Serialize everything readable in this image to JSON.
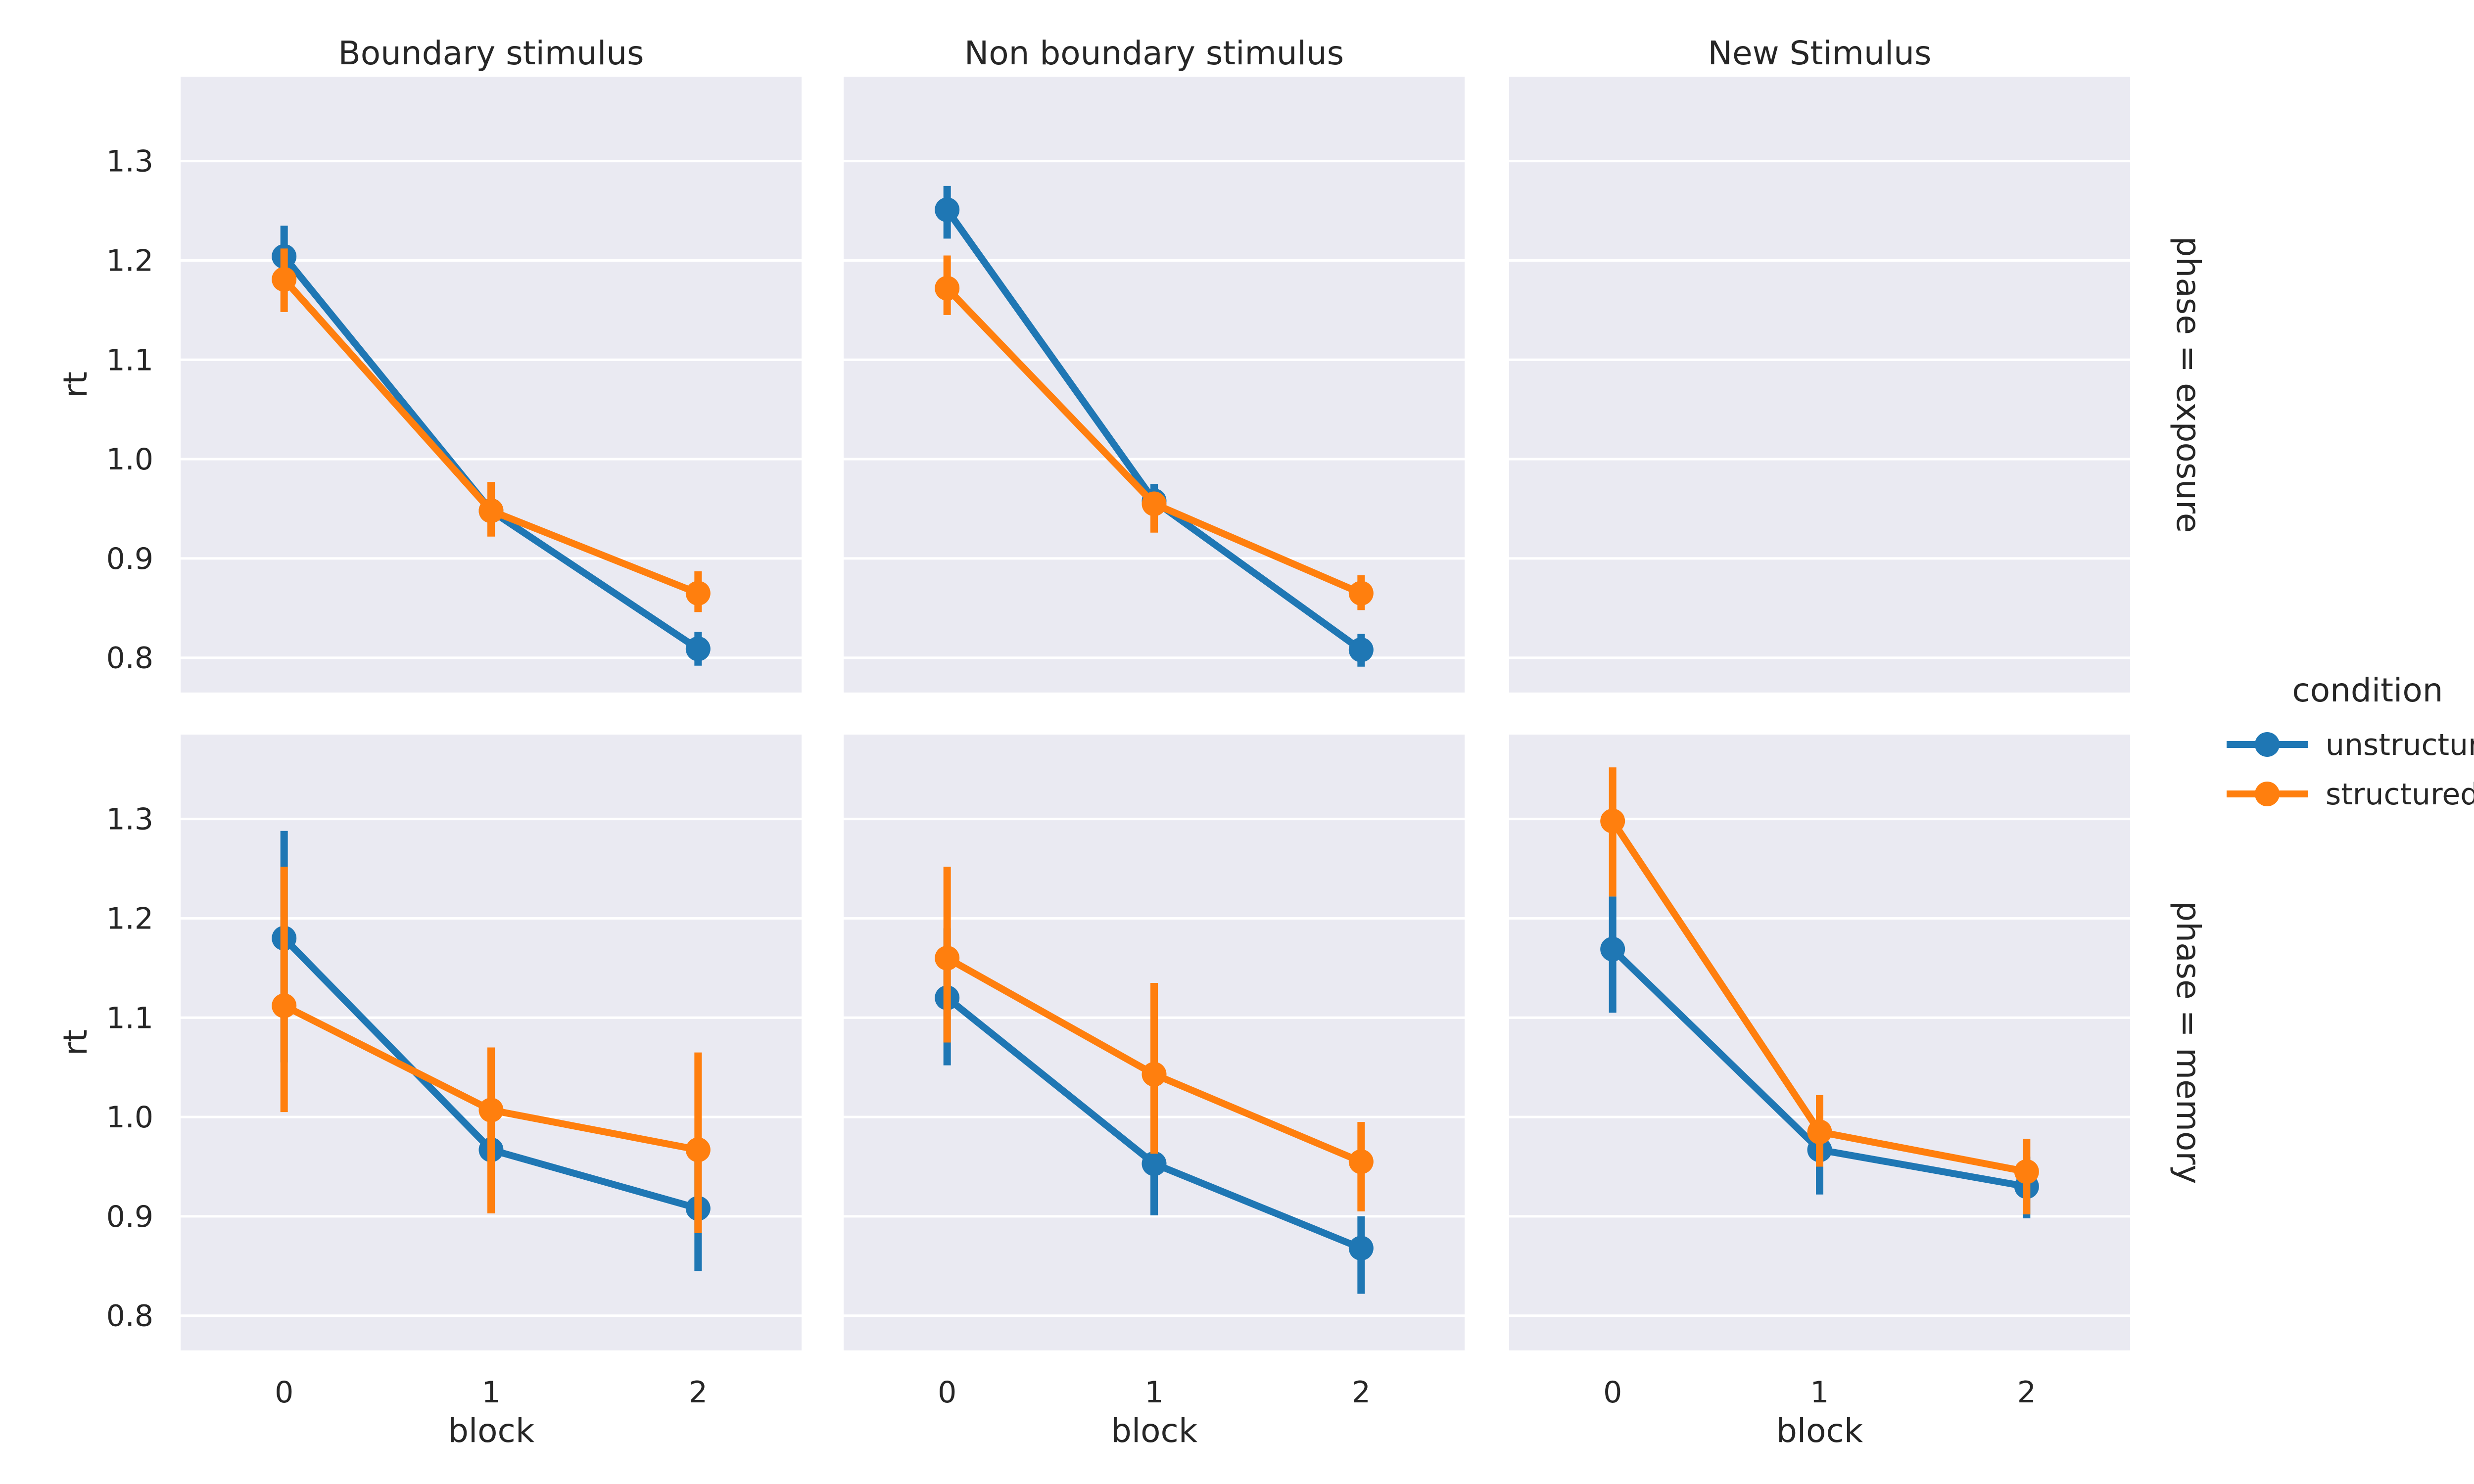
{
  "chart_data": {
    "type": "line",
    "columns": [
      "Boundary stimulus",
      "Non boundary stimulus",
      "New Stimulus"
    ],
    "rows": [
      "phase = exposure",
      "phase = memory"
    ],
    "x": [
      0,
      1,
      2
    ],
    "xlabel": "block",
    "ylabel": "rt",
    "ylim": [
      0.765,
      1.385
    ],
    "yticks": [
      "0.8",
      "0.9",
      "1.0",
      "1.1",
      "1.2",
      "1.3"
    ],
    "xticks": [
      "0",
      "1",
      "2"
    ],
    "grid": true,
    "legend": {
      "title": "condition",
      "placement": "right",
      "entries": [
        "unstructured",
        "structured"
      ]
    },
    "colors": {
      "unstructured": "#1f77b4",
      "structured": "#ff7f0e"
    },
    "panels": [
      {
        "row": 0,
        "col": 0,
        "series": [
          {
            "name": "unstructured",
            "values": [
              1.204,
              0.948,
              0.809
            ],
            "ci": [
              [
                1.175,
                1.235
              ],
              [
                0.93,
                0.965
              ],
              [
                0.792,
                0.826
              ]
            ]
          },
          {
            "name": "structured",
            "values": [
              1.181,
              0.948,
              0.865
            ],
            "ci": [
              [
                1.148,
                1.212
              ],
              [
                0.922,
                0.977
              ],
              [
                0.846,
                0.887
              ]
            ]
          }
        ]
      },
      {
        "row": 0,
        "col": 1,
        "series": [
          {
            "name": "unstructured",
            "values": [
              1.251,
              0.958,
              0.808
            ],
            "ci": [
              [
                1.222,
                1.275
              ],
              [
                0.94,
                0.975
              ],
              [
                0.791,
                0.824
              ]
            ]
          },
          {
            "name": "structured",
            "values": [
              1.172,
              0.955,
              0.865
            ],
            "ci": [
              [
                1.145,
                1.205
              ],
              [
                0.926,
                0.965
              ],
              [
                0.848,
                0.883
              ]
            ]
          }
        ]
      },
      {
        "row": 0,
        "col": 2,
        "series": []
      },
      {
        "row": 1,
        "col": 0,
        "series": [
          {
            "name": "unstructured",
            "values": [
              1.18,
              0.967,
              0.908
            ],
            "ci": [
              [
                1.055,
                1.288
              ],
              [
                0.92,
                1.01
              ],
              [
                0.845,
                0.96
              ]
            ]
          },
          {
            "name": "structured",
            "values": [
              1.112,
              1.007,
              0.967
            ],
            "ci": [
              [
                1.005,
                1.252
              ],
              [
                0.903,
                1.07
              ],
              [
                0.883,
                1.065
              ]
            ]
          }
        ]
      },
      {
        "row": 1,
        "col": 1,
        "series": [
          {
            "name": "unstructured",
            "values": [
              1.12,
              0.953,
              0.868
            ],
            "ci": [
              [
                1.052,
                1.19
              ],
              [
                0.901,
                1.005
              ],
              [
                0.822,
                0.9
              ]
            ]
          },
          {
            "name": "structured",
            "values": [
              1.16,
              1.043,
              0.955
            ],
            "ci": [
              [
                1.075,
                1.252
              ],
              [
                0.963,
                1.135
              ],
              [
                0.905,
                0.995
              ]
            ]
          }
        ]
      },
      {
        "row": 1,
        "col": 2,
        "series": [
          {
            "name": "unstructured",
            "values": [
              1.169,
              0.967,
              0.93
            ],
            "ci": [
              [
                1.105,
                1.222
              ],
              [
                0.922,
                1.005
              ],
              [
                0.898,
                0.96
              ]
            ]
          },
          {
            "name": "structured",
            "values": [
              1.298,
              0.985,
              0.945
            ],
            "ci": [
              [
                1.222,
                1.352
              ],
              [
                0.95,
                1.022
              ],
              [
                0.902,
                0.978
              ]
            ]
          }
        ]
      }
    ]
  }
}
